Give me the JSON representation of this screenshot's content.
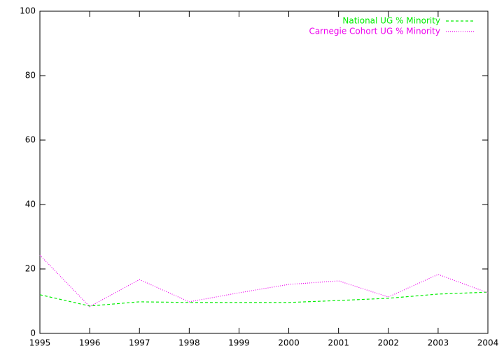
{
  "chart_data": {
    "type": "line",
    "x": [
      1995,
      1996,
      1997,
      1998,
      1999,
      2000,
      2001,
      2002,
      2003,
      2004
    ],
    "series": [
      {
        "name": "National UG % Minority",
        "color": "#00ee00",
        "dash": "4,3",
        "values": [
          12.0,
          8.5,
          9.8,
          9.6,
          9.6,
          9.6,
          10.2,
          10.9,
          12.2,
          12.8
        ]
      },
      {
        "name": "Carnegie Cohort UG % Minority",
        "color": "#ee00ee",
        "dash": "1,2",
        "values": [
          24.3,
          8.3,
          16.7,
          9.8,
          12.6,
          15.2,
          16.3,
          11.3,
          18.3,
          12.6
        ]
      }
    ],
    "xlim": [
      1995,
      2004
    ],
    "ylim": [
      0,
      100
    ],
    "xticks": [
      1995,
      1996,
      1997,
      1998,
      1999,
      2000,
      2001,
      2002,
      2003,
      2004
    ],
    "yticks": [
      0,
      20,
      40,
      60,
      80,
      100
    ],
    "grid": false,
    "legend": "top-right"
  }
}
